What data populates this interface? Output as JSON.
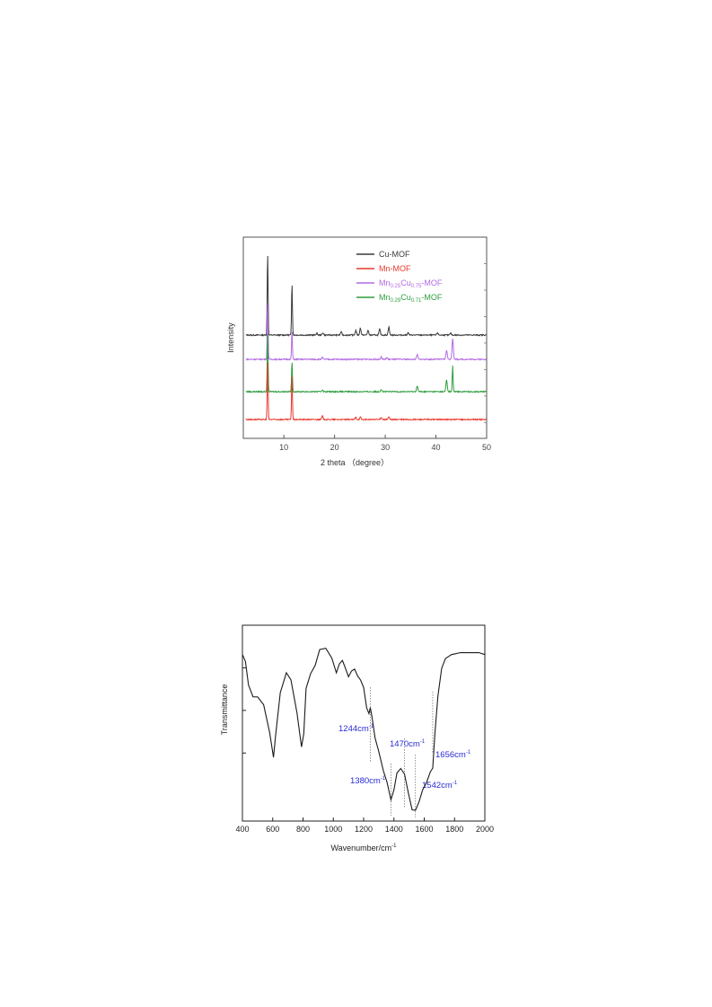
{
  "chart_data": [
    {
      "type": "line",
      "xlabel": "2 theta （degree）",
      "ylabel": "Intensity",
      "xlim": [
        2,
        50
      ],
      "xticks": [
        "10",
        "20",
        "30",
        "40",
        "50"
      ],
      "legend_position": "top-right",
      "series": [
        {
          "name": "Cu-MOF",
          "color": "#3a3a3a",
          "baseline": 1.0,
          "peaks": [
            [
              6.8,
              3.5
            ],
            [
              11.6,
              2.2
            ],
            [
              16.5,
              0.08
            ],
            [
              17.7,
              0.1
            ],
            [
              21.3,
              0.15
            ],
            [
              24.2,
              0.2
            ],
            [
              25.1,
              0.3
            ],
            [
              26.6,
              0.2
            ],
            [
              28.9,
              0.25
            ],
            [
              30.7,
              0.35
            ],
            [
              34.5,
              0.1
            ],
            [
              40.3,
              0.1
            ],
            [
              42.9,
              0.08
            ]
          ]
        },
        {
          "name_parts": [
            [
              "Mn",
              ""
            ],
            [
              "0.25",
              "sub"
            ],
            [
              "Cu",
              ""
            ],
            [
              "0.75",
              "sub"
            ],
            [
              "-MOF",
              ""
            ]
          ],
          "color": "#b36ae2",
          "baseline": 1.0,
          "peaks": [
            [
              6.8,
              2.5
            ],
            [
              11.6,
              1.2
            ],
            [
              17.6,
              0.08
            ],
            [
              29.2,
              0.1
            ],
            [
              30.3,
              0.08
            ],
            [
              36.3,
              0.2
            ],
            [
              42.1,
              0.4
            ],
            [
              43.3,
              0.9
            ]
          ]
        },
        {
          "name_parts": [
            [
              "Mn",
              ""
            ],
            [
              "0.29",
              "sub"
            ],
            [
              "Cu",
              ""
            ],
            [
              "0.71",
              "sub"
            ],
            [
              "-MOF",
              ""
            ]
          ],
          "color": "#2e9e3e",
          "baseline": 1.0,
          "peaks": [
            [
              6.8,
              2.5
            ],
            [
              11.6,
              1.3
            ],
            [
              17.6,
              0.08
            ],
            [
              29.2,
              0.1
            ],
            [
              36.3,
              0.25
            ],
            [
              42.1,
              0.5
            ],
            [
              43.3,
              1.1
            ]
          ]
        },
        {
          "name": "Mn-MOF",
          "color": "#e8382d",
          "baseline": 1.0,
          "peaks": [
            [
              6.8,
              2.5
            ],
            [
              11.6,
              1.9
            ],
            [
              17.6,
              0.15
            ],
            [
              24.2,
              0.1
            ],
            [
              25.1,
              0.1
            ],
            [
              29.2,
              0.1
            ],
            [
              30.7,
              0.1
            ]
          ]
        }
      ]
    },
    {
      "type": "line",
      "xlabel": "Wavenumber/cm",
      "xlabel_sup": "-1",
      "ylabel": "Transmittance",
      "xlim": [
        400,
        2000
      ],
      "xticks": [
        "400",
        "600",
        "800",
        "1000",
        "1200",
        "1400",
        "1600",
        "1800",
        "2000"
      ],
      "series": [
        {
          "color": "#1a1a1a",
          "x": [
            400,
            420,
            440,
            470,
            500,
            540,
            580,
            605,
            620,
            650,
            690,
            720,
            760,
            790,
            805,
            820,
            850,
            880,
            910,
            950,
            990,
            1020,
            1040,
            1060,
            1080,
            1100,
            1120,
            1140,
            1160,
            1180,
            1200,
            1220,
            1235,
            1244,
            1255,
            1275,
            1300,
            1330,
            1355,
            1380,
            1400,
            1420,
            1445,
            1470,
            1495,
            1520,
            1542,
            1565,
            1590,
            1615,
            1640,
            1656,
            1670,
            1690,
            1715,
            1740,
            1780,
            1840,
            1900,
            1960,
            2000
          ],
          "y": [
            0.85,
            0.82,
            0.7,
            0.64,
            0.64,
            0.6,
            0.45,
            0.32,
            0.45,
            0.65,
            0.76,
            0.72,
            0.55,
            0.38,
            0.45,
            0.68,
            0.75,
            0.8,
            0.87,
            0.88,
            0.83,
            0.76,
            0.8,
            0.82,
            0.78,
            0.74,
            0.76,
            0.78,
            0.74,
            0.72,
            0.68,
            0.58,
            0.55,
            0.58,
            0.53,
            0.43,
            0.35,
            0.26,
            0.2,
            0.11,
            0.16,
            0.24,
            0.27,
            0.24,
            0.14,
            0.06,
            0.05,
            0.1,
            0.16,
            0.2,
            0.25,
            0.27,
            0.44,
            0.64,
            0.78,
            0.83,
            0.85,
            0.86,
            0.86,
            0.86,
            0.85
          ]
        }
      ],
      "annotations": [
        {
          "label": "1244cm",
          "sup": "-1",
          "x": 1244
        },
        {
          "label": "1380cm",
          "sup": "-1",
          "x": 1380
        },
        {
          "label": "1470cm",
          "sup": "-1",
          "x": 1470
        },
        {
          "label": "1542cm",
          "sup": "-1",
          "x": 1542
        },
        {
          "label": "1656cm",
          "sup": "-1",
          "x": 1656
        }
      ],
      "annotation_color": "#2a2ad6"
    }
  ]
}
